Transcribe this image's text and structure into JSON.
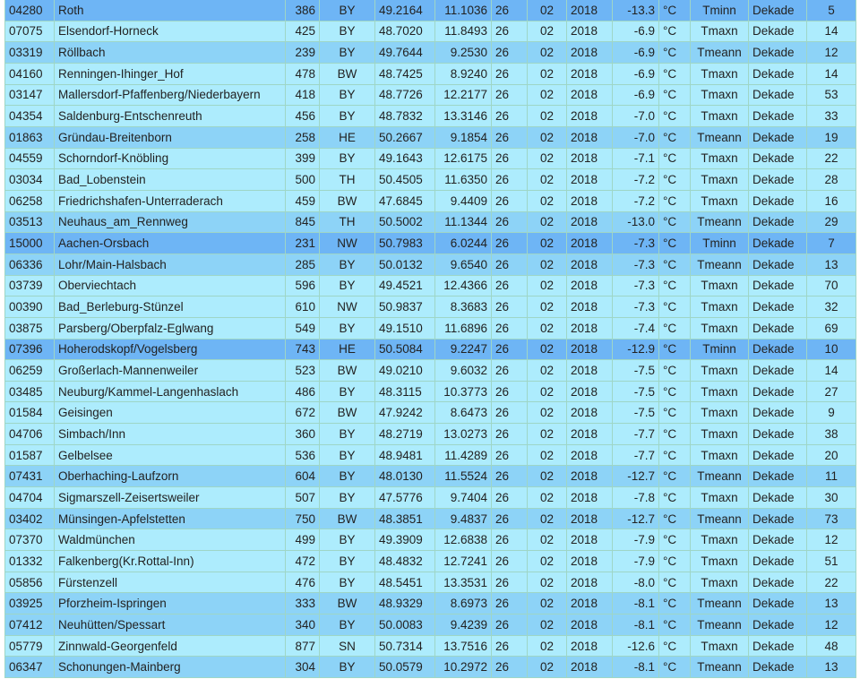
{
  "row_colors": {
    "Tminn": "#6eb5f5",
    "Tmeann": "#8dd3f7",
    "Tmaxn": "#adecfd"
  },
  "rows": [
    [
      "04280",
      "Roth",
      "386",
      "BY",
      "49.2164",
      "11.1036",
      "26",
      "02",
      "2018",
      "-13.3",
      "°C",
      "Tminn",
      "Dekade",
      "5"
    ],
    [
      "07075",
      "Elsendorf-Horneck",
      "425",
      "BY",
      "48.7020",
      "11.8493",
      "26",
      "02",
      "2018",
      "-6.9",
      "°C",
      "Tmaxn",
      "Dekade",
      "14"
    ],
    [
      "03319",
      "Röllbach",
      "239",
      "BY",
      "49.7644",
      "9.2530",
      "26",
      "02",
      "2018",
      "-6.9",
      "°C",
      "Tmeann",
      "Dekade",
      "12"
    ],
    [
      "04160",
      "Renningen-Ihinger_Hof",
      "478",
      "BW",
      "48.7425",
      "8.9240",
      "26",
      "02",
      "2018",
      "-6.9",
      "°C",
      "Tmaxn",
      "Dekade",
      "14"
    ],
    [
      "03147",
      "Mallersdorf-Pfaffenberg/Niederbayern",
      "418",
      "BY",
      "48.7726",
      "12.2177",
      "26",
      "02",
      "2018",
      "-6.9",
      "°C",
      "Tmaxn",
      "Dekade",
      "53"
    ],
    [
      "04354",
      "Saldenburg-Entschenreuth",
      "456",
      "BY",
      "48.7832",
      "13.3146",
      "26",
      "02",
      "2018",
      "-7.0",
      "°C",
      "Tmaxn",
      "Dekade",
      "33"
    ],
    [
      "01863",
      "Gründau-Breitenborn",
      "258",
      "HE",
      "50.2667",
      "9.1854",
      "26",
      "02",
      "2018",
      "-7.0",
      "°C",
      "Tmeann",
      "Dekade",
      "19"
    ],
    [
      "04559",
      "Schorndorf-Knöbling",
      "399",
      "BY",
      "49.1643",
      "12.6175",
      "26",
      "02",
      "2018",
      "-7.1",
      "°C",
      "Tmaxn",
      "Dekade",
      "22"
    ],
    [
      "03034",
      "Bad_Lobenstein",
      "500",
      "TH",
      "50.4505",
      "11.6350",
      "26",
      "02",
      "2018",
      "-7.2",
      "°C",
      "Tmaxn",
      "Dekade",
      "28"
    ],
    [
      "06258",
      "Friedrichshafen-Unterraderach",
      "459",
      "BW",
      "47.6845",
      "9.4409",
      "26",
      "02",
      "2018",
      "-7.2",
      "°C",
      "Tmaxn",
      "Dekade",
      "16"
    ],
    [
      "03513",
      "Neuhaus_am_Rennweg",
      "845",
      "TH",
      "50.5002",
      "11.1344",
      "26",
      "02",
      "2018",
      "-13.0",
      "°C",
      "Tmeann",
      "Dekade",
      "29"
    ],
    [
      "15000",
      "Aachen-Orsbach",
      "231",
      "NW",
      "50.7983",
      "6.0244",
      "26",
      "02",
      "2018",
      "-7.3",
      "°C",
      "Tminn",
      "Dekade",
      "7"
    ],
    [
      "06336",
      "Lohr/Main-Halsbach",
      "285",
      "BY",
      "50.0132",
      "9.6540",
      "26",
      "02",
      "2018",
      "-7.3",
      "°C",
      "Tmeann",
      "Dekade",
      "13"
    ],
    [
      "03739",
      "Oberviechtach",
      "596",
      "BY",
      "49.4521",
      "12.4366",
      "26",
      "02",
      "2018",
      "-7.3",
      "°C",
      "Tmaxn",
      "Dekade",
      "70"
    ],
    [
      "00390",
      "Bad_Berleburg-Stünzel",
      "610",
      "NW",
      "50.9837",
      "8.3683",
      "26",
      "02",
      "2018",
      "-7.3",
      "°C",
      "Tmaxn",
      "Dekade",
      "32"
    ],
    [
      "03875",
      "Parsberg/Oberpfalz-Eglwang",
      "549",
      "BY",
      "49.1510",
      "11.6896",
      "26",
      "02",
      "2018",
      "-7.4",
      "°C",
      "Tmaxn",
      "Dekade",
      "69"
    ],
    [
      "07396",
      "Hoherodskopf/Vogelsberg",
      "743",
      "HE",
      "50.5084",
      "9.2247",
      "26",
      "02",
      "2018",
      "-12.9",
      "°C",
      "Tminn",
      "Dekade",
      "10"
    ],
    [
      "06259",
      "Großerlach-Mannenweiler",
      "523",
      "BW",
      "49.0210",
      "9.6032",
      "26",
      "02",
      "2018",
      "-7.5",
      "°C",
      "Tmaxn",
      "Dekade",
      "14"
    ],
    [
      "03485",
      "Neuburg/Kammel-Langenhaslach",
      "486",
      "BY",
      "48.3115",
      "10.3773",
      "26",
      "02",
      "2018",
      "-7.5",
      "°C",
      "Tmaxn",
      "Dekade",
      "27"
    ],
    [
      "01584",
      "Geisingen",
      "672",
      "BW",
      "47.9242",
      "8.6473",
      "26",
      "02",
      "2018",
      "-7.5",
      "°C",
      "Tmaxn",
      "Dekade",
      "9"
    ],
    [
      "04706",
      "Simbach/Inn",
      "360",
      "BY",
      "48.2719",
      "13.0273",
      "26",
      "02",
      "2018",
      "-7.7",
      "°C",
      "Tmaxn",
      "Dekade",
      "38"
    ],
    [
      "01587",
      "Gelbelsee",
      "536",
      "BY",
      "48.9481",
      "11.4289",
      "26",
      "02",
      "2018",
      "-7.7",
      "°C",
      "Tmaxn",
      "Dekade",
      "20"
    ],
    [
      "07431",
      "Oberhaching-Laufzorn",
      "604",
      "BY",
      "48.0130",
      "11.5524",
      "26",
      "02",
      "2018",
      "-12.7",
      "°C",
      "Tmeann",
      "Dekade",
      "11"
    ],
    [
      "04704",
      "Sigmarszell-Zeisertsweiler",
      "507",
      "BY",
      "47.5776",
      "9.7404",
      "26",
      "02",
      "2018",
      "-7.8",
      "°C",
      "Tmaxn",
      "Dekade",
      "30"
    ],
    [
      "03402",
      "Münsingen-Apfelstetten",
      "750",
      "BW",
      "48.3851",
      "9.4837",
      "26",
      "02",
      "2018",
      "-12.7",
      "°C",
      "Tmeann",
      "Dekade",
      "73"
    ],
    [
      "07370",
      "Waldmünchen",
      "499",
      "BY",
      "49.3909",
      "12.6838",
      "26",
      "02",
      "2018",
      "-7.9",
      "°C",
      "Tmaxn",
      "Dekade",
      "12"
    ],
    [
      "01332",
      "Falkenberg(Kr.Rottal-Inn)",
      "472",
      "BY",
      "48.4832",
      "12.7241",
      "26",
      "02",
      "2018",
      "-7.9",
      "°C",
      "Tmaxn",
      "Dekade",
      "51"
    ],
    [
      "05856",
      "Fürstenzell",
      "476",
      "BY",
      "48.5451",
      "13.3531",
      "26",
      "02",
      "2018",
      "-8.0",
      "°C",
      "Tmaxn",
      "Dekade",
      "22"
    ],
    [
      "03925",
      "Pforzheim-Ispringen",
      "333",
      "BW",
      "48.9329",
      "8.6973",
      "26",
      "02",
      "2018",
      "-8.1",
      "°C",
      "Tmeann",
      "Dekade",
      "13"
    ],
    [
      "07412",
      "Neuhütten/Spessart",
      "340",
      "BY",
      "50.0083",
      "9.4239",
      "26",
      "02",
      "2018",
      "-8.1",
      "°C",
      "Tmeann",
      "Dekade",
      "12"
    ],
    [
      "05779",
      "Zinnwald-Georgenfeld",
      "877",
      "SN",
      "50.7314",
      "13.7516",
      "26",
      "02",
      "2018",
      "-12.6",
      "°C",
      "Tmaxn",
      "Dekade",
      "48"
    ],
    [
      "06347",
      "Schonungen-Mainberg",
      "304",
      "BY",
      "50.0579",
      "10.2972",
      "26",
      "02",
      "2018",
      "-8.1",
      "°C",
      "Tmeann",
      "Dekade",
      "13"
    ]
  ]
}
